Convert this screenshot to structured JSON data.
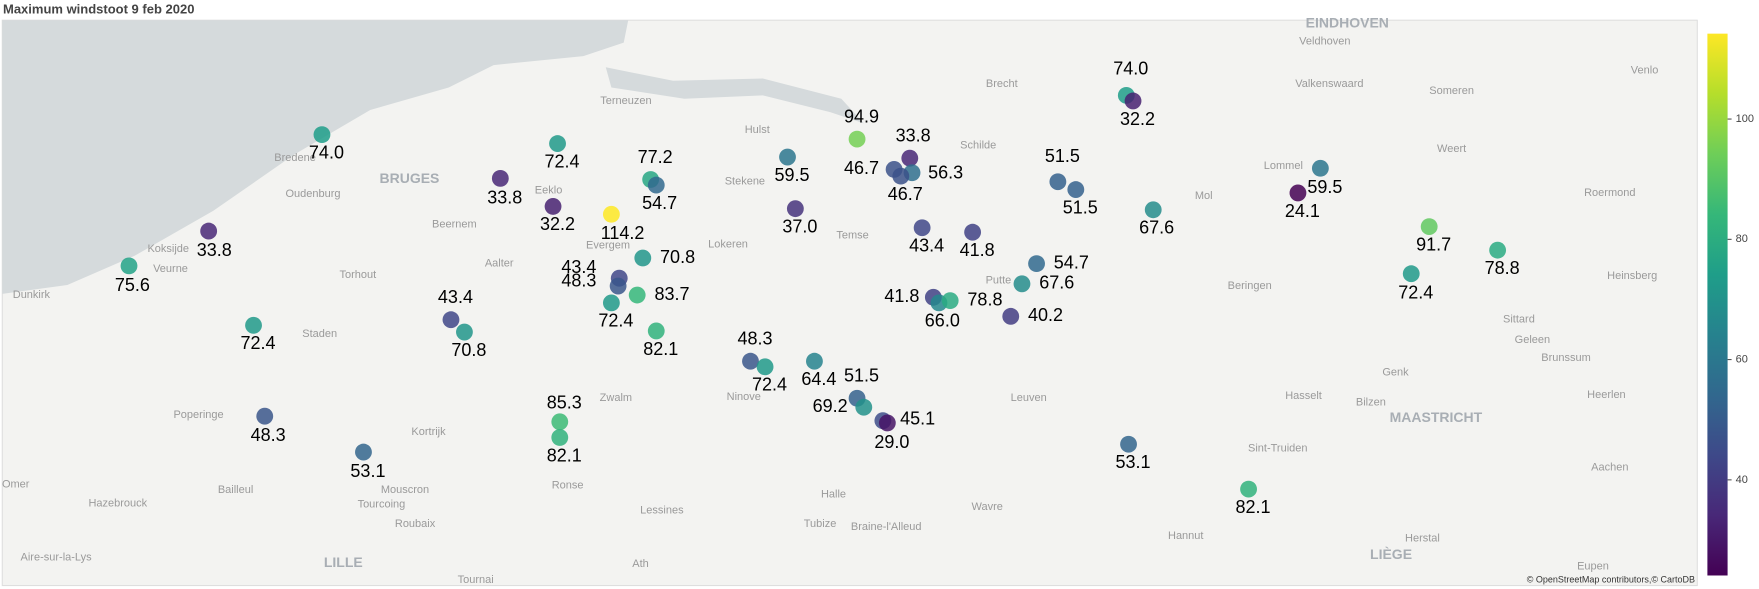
{
  "chart_data": {
    "type": "scatter_map",
    "title": "Maximum windstoot 9 feb 2020",
    "values": [
      74.0,
      33.8,
      75.6,
      72.4,
      48.3,
      53.1,
      43.4,
      70.8,
      33.8,
      32.2,
      72.4,
      114.2,
      77.2,
      54.7,
      70.8,
      43.4,
      48.3,
      72.4,
      83.7,
      82.1,
      85.3,
      82.1,
      48.3,
      72.4,
      59.5,
      37.0,
      64.4,
      94.9,
      46.7,
      33.8,
      56.3,
      46.7,
      51.5,
      69.2,
      45.1,
      29.0,
      43.4,
      41.8,
      41.8,
      66.0,
      78.8,
      67.6,
      54.7,
      40.2,
      51.5,
      51.5,
      74.0,
      32.2,
      67.6,
      53.1,
      82.1,
      24.1,
      59.5,
      91.7,
      72.4,
      78.8
    ],
    "value_labels": [
      "74.0",
      "33.8",
      "75.6",
      "72.4",
      "48.3",
      "53.1",
      "43.4",
      "70.8",
      "33.8",
      "32.2",
      "72.4",
      "114.2",
      "77.2",
      "54.7",
      "70.8",
      "43.4",
      "48.3",
      "72.4",
      "83.7",
      "82.1",
      "85.3",
      "82.1",
      "48.3",
      "72.4",
      "59.5",
      "37.0",
      "64.4",
      "94.9",
      "46.7",
      "33.8",
      "56.3",
      "46.7",
      "51.5",
      "69.2",
      "45.1",
      "29.0",
      "43.4",
      "41.8",
      "41.8",
      "66.0",
      "78.8",
      "67.6",
      "54.7",
      "40.2",
      "51.5",
      "51.5",
      "74.0",
      "32.2",
      "67.6",
      "53.1",
      "82.1",
      "24.1",
      "59.5",
      "91.7",
      "72.4",
      "78.8"
    ],
    "colorscale": "Viridis",
    "colorbar_ticks": [
      40,
      60,
      80,
      100
    ],
    "places": [
      "BRUGES",
      "Oudenburg",
      "Koksijde",
      "Veurne",
      "Dunkirk",
      "Torhout",
      "Staden",
      "Poperinge",
      "Kortrijk",
      "Bailleul",
      "Hazebrouck",
      "Mouscron",
      "Tourcoing",
      "Roubaix",
      "LILLE",
      "Aire-sur-la-Lys",
      "Omer",
      "Tournai",
      "Ath",
      "Lessines",
      "Ronse",
      "Zwalm",
      "Ninove",
      "Halle",
      "Tubize",
      "Braine-l'Alleud",
      "Wavre",
      "Leuven",
      "Hannut",
      "Sint-Truiden",
      "Hasselt",
      "Genk",
      "Bilzen",
      "MAASTRICHT",
      "Heerlen",
      "Aachen",
      "LIÈGE",
      "Herstal",
      "Eupen",
      "Brunssum",
      "Geleen",
      "Sittard",
      "Heinsberg",
      "Roermond",
      "Weert",
      "Venlo",
      "Someren",
      "Valkenswaard",
      "EINDHOVEN",
      "Veldhoven",
      "Brecht",
      "Schilde",
      "Mol",
      "Lommel",
      "Beringen",
      "Terneuzen",
      "Hulst",
      "Stekene",
      "Lokeren",
      "Temse",
      "Evergem",
      "Eeklo",
      "Beernem",
      "Aalter",
      "Bredene",
      "Putte"
    ],
    "attribution": "© OpenStreetMap contributors,© CartoDB"
  }
}
